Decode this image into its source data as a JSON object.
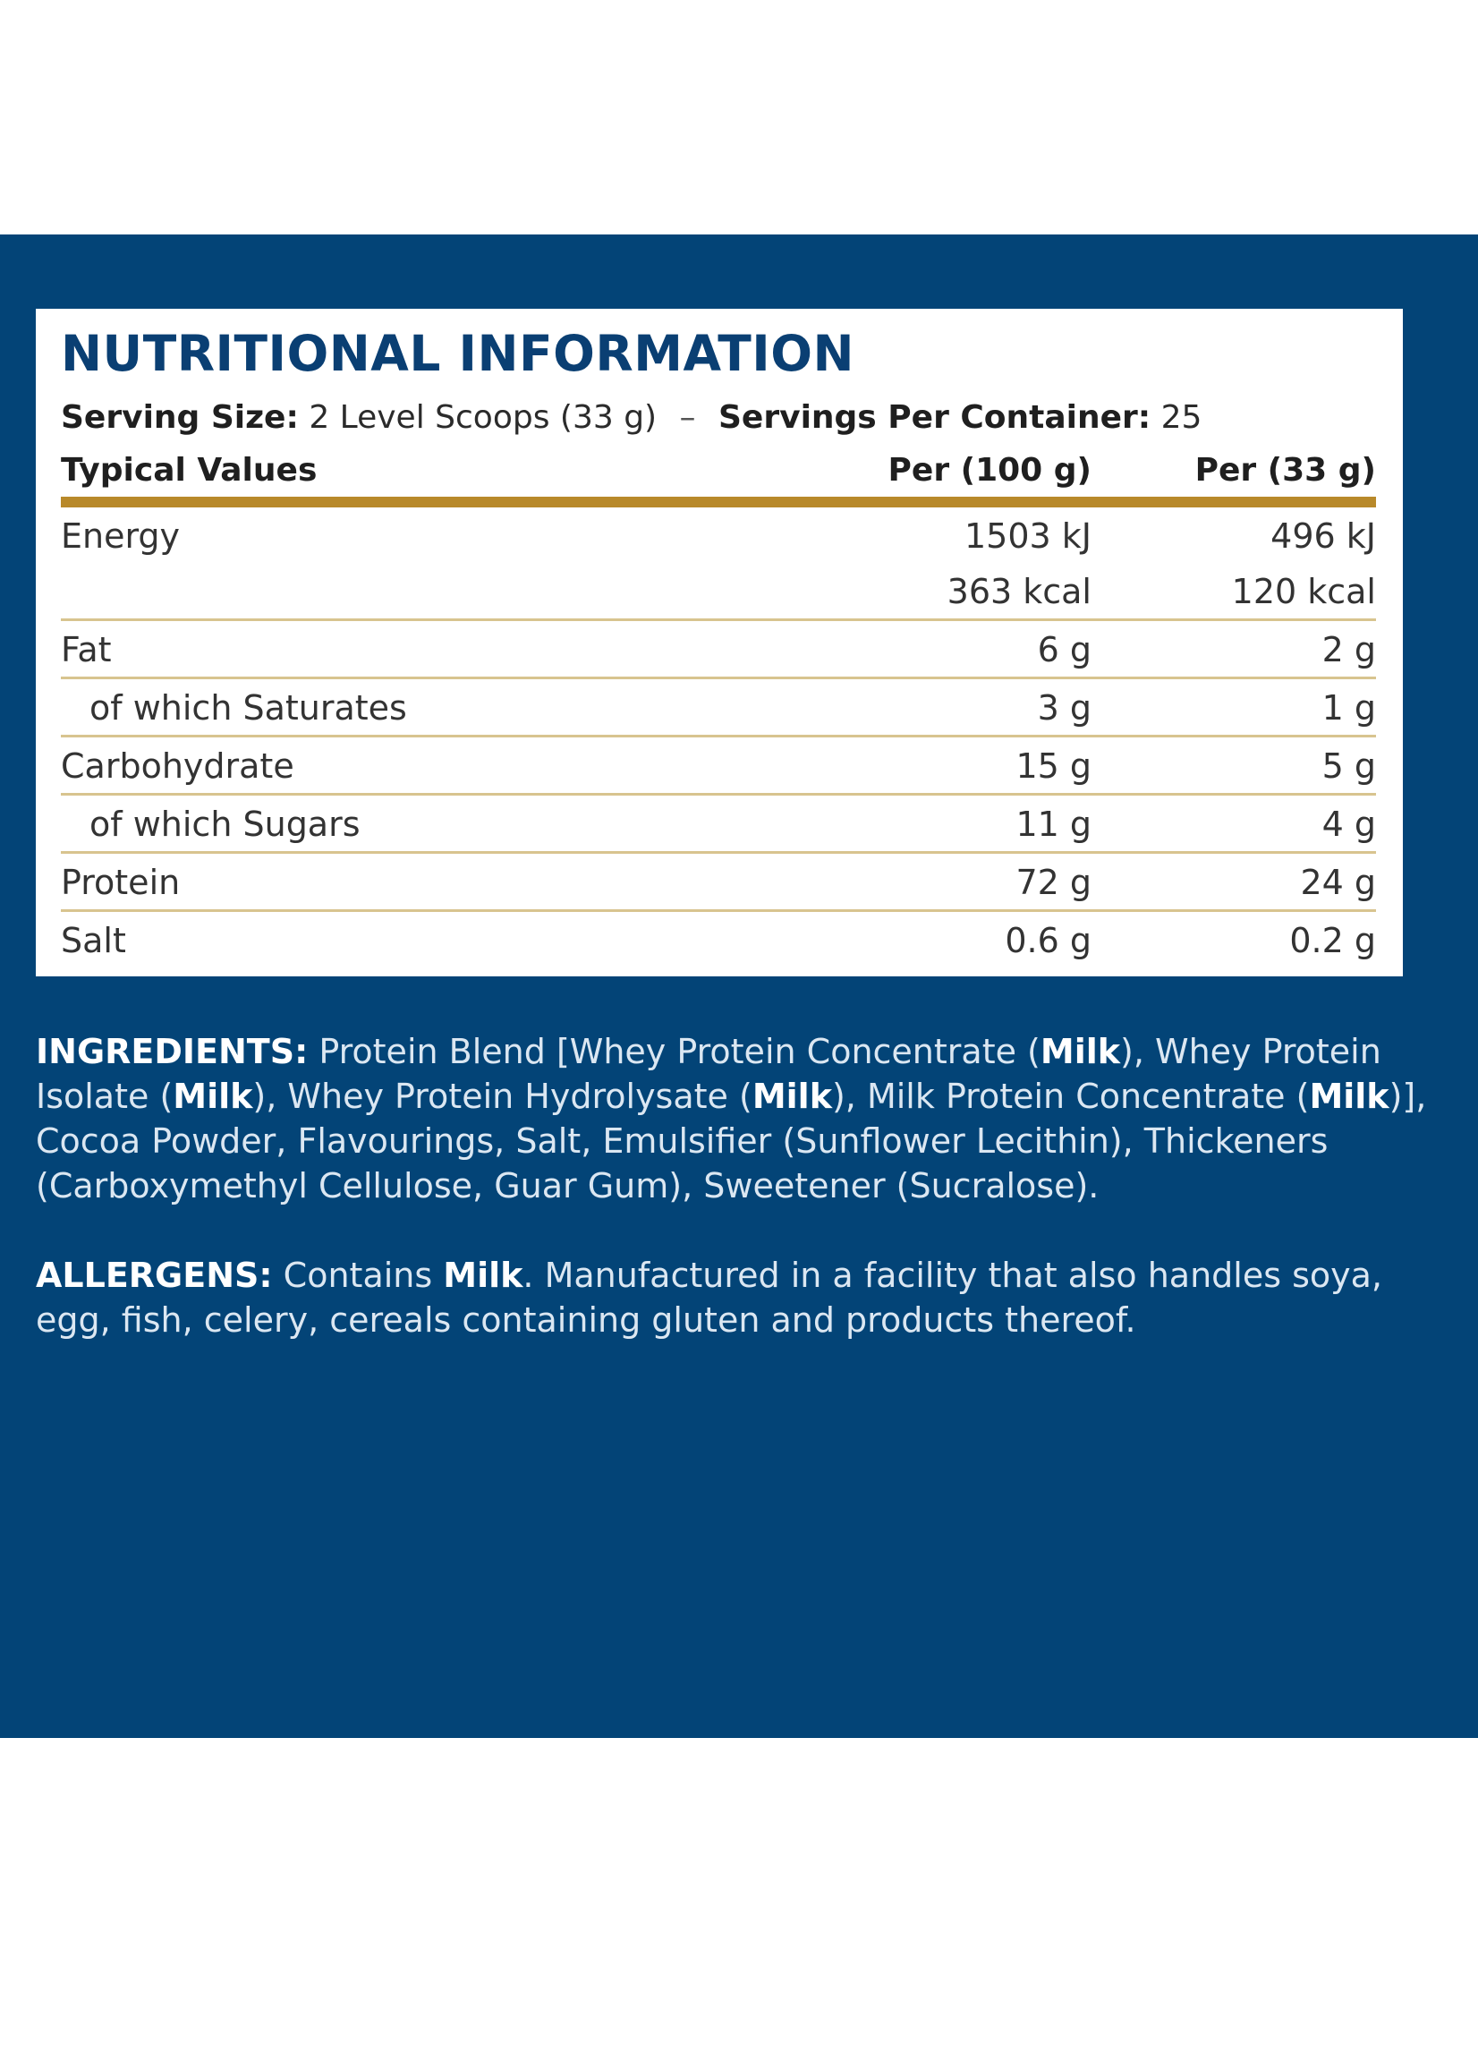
{
  "label": {
    "title": "NUTRITIONAL INFORMATION",
    "serving_size_label": "Serving Size:",
    "serving_size_value": "2 Level Scoops (33 g)",
    "separator": "–",
    "servings_per_container_label": "Servings Per Container:",
    "servings_per_container_value": "25",
    "headers": {
      "typical_values": "Typical Values",
      "per_100g": "Per (100 g)",
      "per_serving": "Per (33 g)"
    },
    "rows": [
      {
        "name": "Energy",
        "per_100g": "1503 kJ",
        "per_serving": "496 kJ"
      },
      {
        "name": "",
        "per_100g": "363 kcal",
        "per_serving": "120 kcal"
      },
      {
        "name": "Fat",
        "per_100g": "6 g",
        "per_serving": "2 g"
      },
      {
        "name": "of which Saturates",
        "per_100g": "3 g",
        "per_serving": "1 g"
      },
      {
        "name": "Carbohydrate",
        "per_100g": "15 g",
        "per_serving": "5 g"
      },
      {
        "name": "of which Sugars",
        "per_100g": "11 g",
        "per_serving": "4 g"
      },
      {
        "name": "Protein",
        "per_100g": "72 g",
        "per_serving": "24 g"
      },
      {
        "name": "Salt",
        "per_100g": "0.6 g",
        "per_serving": "0.2 g"
      }
    ]
  },
  "ingredients": {
    "label": "INGREDIENTS:",
    "parts": [
      "Protein Blend [Whey Protein Concentrate (",
      "Milk",
      "), Whey Protein Isolate (",
      "Milk",
      "), Whey Protein Hydrolysate (",
      "Milk",
      "), Milk Protein Concentrate (",
      "Milk",
      ")], Cocoa Powder, Flavourings, Salt, Emulsifier (Sunflower Lecithin), Thickeners (Carboxymethyl Cellulose, Guar Gum), Sweetener (Sucralose)."
    ]
  },
  "allergens": {
    "label": "ALLERGENS:",
    "text_before": "Contains",
    "allergen": "Milk",
    "text_after": ". Manufactured in a facility that also handles soya, egg, fish, celery, cereals containing gluten and products thereof."
  },
  "colors": {
    "background_panel": "#034477",
    "title": "#0a3f73",
    "gold_rule": "#b8892a"
  }
}
